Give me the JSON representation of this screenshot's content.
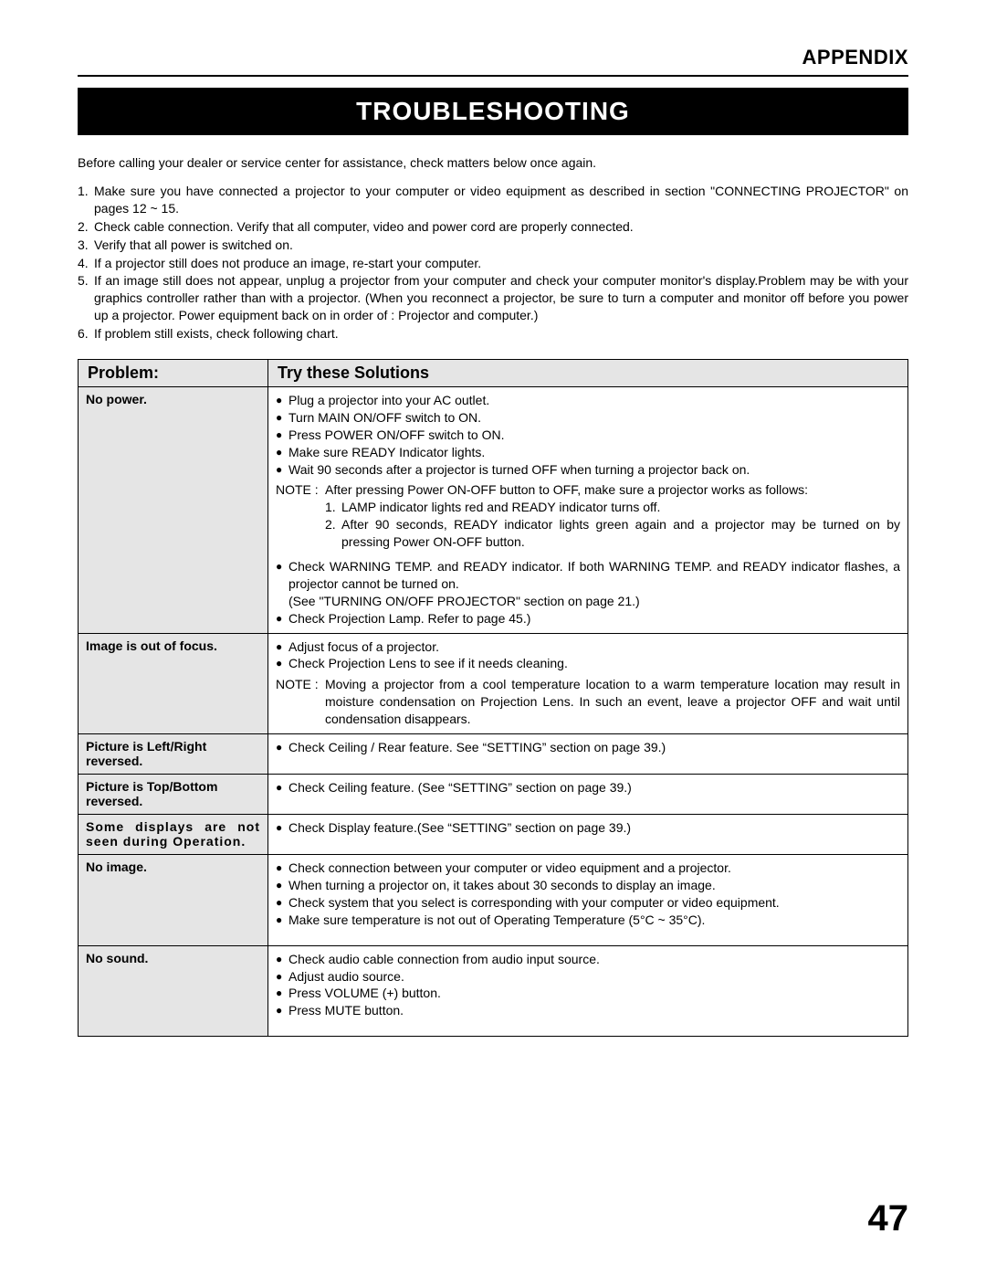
{
  "header": {
    "appendix": "APPENDIX"
  },
  "title": "TROUBLESHOOTING",
  "intro": "Before calling your dealer or service center for assistance, check matters below once again.",
  "steps": [
    {
      "n": "1.",
      "t": "Make sure you have connected a projector to your computer or video equipment as described in section \"CONNECTING PROJECTOR\"  on pages 12 ~ 15."
    },
    {
      "n": "2.",
      "t": "Check cable connection.  Verify that all computer, video and power cord are properly connected."
    },
    {
      "n": "3.",
      "t": "Verify that all power is switched on."
    },
    {
      "n": "4.",
      "t": "If a projector still does not produce an image, re-start your computer."
    },
    {
      "n": "5.",
      "t": "If an image still does not appear, unplug a projector from your computer and check your computer monitor's display.Problem may be with your graphics controller rather than with a projector.  (When you reconnect a projector, be sure to turn a computer and monitor off before you power up a projector.  Power equipment back on in order of : Projector and computer.)"
    },
    {
      "n": "6.",
      "t": "If problem still exists, check following chart."
    }
  ],
  "table": {
    "head": {
      "problem": "Problem:",
      "solutions": "Try these Solutions"
    },
    "rows": [
      {
        "problem": "No power.",
        "bullets1": [
          "Plug a projector into your AC outlet.",
          "Turn MAIN ON/OFF switch to ON.",
          "Press POWER ON/OFF switch to ON.",
          "Make sure READY Indicator lights.",
          "Wait 90 seconds after a projector is turned OFF when turning a projector back on."
        ],
        "note": {
          "label": "NOTE :",
          "lead": "After pressing Power ON-OFF button to OFF, make sure a projector works as follows:",
          "subs": [
            {
              "n": "1.",
              "t": "LAMP indicator lights red and READY indicator turns off."
            },
            {
              "n": "2.",
              "t": "After 90 seconds, READY indicator lights green again and a projector may be turned on by pressing Power ON-OFF button."
            }
          ]
        },
        "bullets2": [
          "Check WARNING TEMP. and READY indicator. If both WARNING TEMP. and READY indicator flashes, a projector cannot be turned on.",
          "Check Projection Lamp.  Refer to page 45.)"
        ],
        "inset": "(See \"TURNING ON/OFF PROJECTOR\" section on page 21.)"
      },
      {
        "problem": "Image is out of focus.",
        "bullets1": [
          "Adjust focus of a projector.",
          "Check Projection Lens to see if it needs cleaning."
        ],
        "note2": {
          "label": "NOTE :",
          "t": "Moving a projector from a cool temperature location to a warm temperature location may result in moisture condensation on Projection Lens.  In such an event, leave a projector OFF and wait until condensation disappears."
        }
      },
      {
        "problem": "Picture is Left/Right reversed.",
        "bullets1": [
          "Check Ceiling / Rear feature.  See “SETTING” section on page 39.)"
        ]
      },
      {
        "problem": "Picture is Top/Bottom reversed.",
        "bullets1": [
          "Check Ceiling feature.  (See “SETTING” section on page 39.)"
        ]
      },
      {
        "problem": "Some displays are not seen during Operation.",
        "bullets1": [
          "Check Display feature.(See “SETTING” section on page 39.)"
        ]
      },
      {
        "problem": "No image.",
        "bullets1": [
          "Check connection between your computer or video equipment and a projector.",
          "When turning a projector on, it takes about 30 seconds to display an image.",
          "Check system that you select is corresponding with your computer or video equipment.",
          "Make sure temperature is not out of Operating Temperature (5°C ~ 35°C)."
        ]
      },
      {
        "problem": "No sound.",
        "bullets1": [
          "Check audio cable connection from audio input source.",
          "Adjust audio source.",
          "Press VOLUME (+) button.",
          "Press MUTE button."
        ]
      }
    ]
  },
  "page": "47"
}
